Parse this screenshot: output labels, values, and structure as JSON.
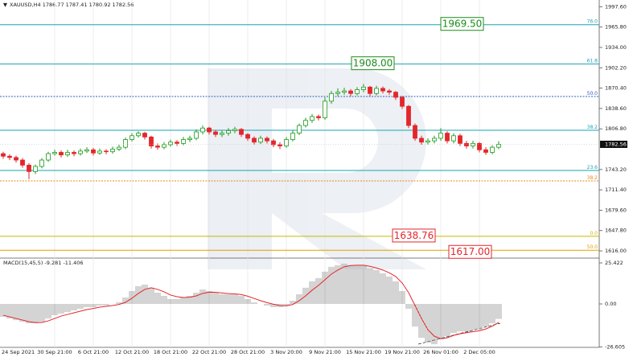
{
  "chart_data": {
    "type": "candlestick",
    "header": "XAUUSD,H4  1786.77 1787.41 1780.92 1782.56",
    "ylim": [
      1606,
      2005.6
    ],
    "yticks": [
      {
        "value": 1997.6,
        "label": "1997.60"
      },
      {
        "value": 1965.8,
        "label": "1965.80"
      },
      {
        "value": 1934,
        "label": "1934.00"
      },
      {
        "value": 1902.2,
        "label": "1902.20"
      },
      {
        "value": 1870.4,
        "label": "1870.40"
      },
      {
        "value": 1838.6,
        "label": "1838.60"
      },
      {
        "value": 1806.8,
        "label": "1806.80"
      },
      {
        "value": 1743.2,
        "label": "1743.20"
      },
      {
        "value": 1711.4,
        "label": "1711.40"
      },
      {
        "value": 1679.6,
        "label": "1679.60"
      },
      {
        "value": 1647.8,
        "label": "1647.80"
      },
      {
        "value": 1616,
        "label": "1616.00"
      }
    ],
    "x_labels": [
      "24 Sep 2021",
      "30 Sep 21:00",
      "6 Oct 21:00",
      "12 Oct 21:00",
      "18 Oct 21:00",
      "22 Oct 21:00",
      "28 Oct 21:00",
      "3 Nov 20:00",
      "9 Nov 21:00",
      "15 Nov 21:00",
      "19 Nov 21:00",
      "26 Nov 01:00",
      "2 Dec 05:00"
    ],
    "up_color": "#1c9c1c",
    "down_color": "#e3262b",
    "open": [
      1768,
      1764,
      1762,
      1758,
      1750,
      1740,
      1748,
      1758,
      1768,
      1770,
      1766,
      1770,
      1768,
      1772,
      1774,
      1769,
      1772,
      1771,
      1775,
      1778,
      1790,
      1796,
      1800,
      1794,
      1780,
      1778,
      1782,
      1786,
      1784,
      1790,
      1792,
      1802,
      1808,
      1802,
      1798,
      1800,
      1804,
      1806,
      1798,
      1792,
      1786,
      1792,
      1788,
      1782,
      1780,
      1790,
      1800,
      1812,
      1820,
      1826,
      1824,
      1850,
      1862,
      1864,
      1866,
      1862,
      1868,
      1872,
      1862,
      1870,
      1866,
      1864,
      1856,
      1842,
      1812,
      1792,
      1786,
      1788,
      1792,
      1800,
      1788,
      1796,
      1784,
      1780,
      1784,
      1774,
      1770,
      1778
    ],
    "high": [
      1771,
      1767,
      1765,
      1761,
      1753,
      1751,
      1761,
      1771,
      1774,
      1773,
      1774,
      1773,
      1776,
      1778,
      1777,
      1776,
      1775,
      1779,
      1782,
      1793,
      1800,
      1803,
      1802,
      1796,
      1784,
      1786,
      1790,
      1789,
      1794,
      1796,
      1806,
      1812,
      1810,
      1805,
      1804,
      1808,
      1810,
      1808,
      1800,
      1795,
      1796,
      1795,
      1791,
      1786,
      1794,
      1804,
      1815,
      1824,
      1830,
      1829,
      1856,
      1866,
      1870,
      1871,
      1869,
      1872,
      1877,
      1874,
      1874,
      1873,
      1869,
      1866,
      1858,
      1844,
      1815,
      1796,
      1792,
      1796,
      1808,
      1803,
      1800,
      1799,
      1788,
      1788,
      1786,
      1778,
      1781,
      1787.41
    ],
    "low": [
      1760,
      1758,
      1754,
      1746,
      1728,
      1736,
      1745,
      1755,
      1765,
      1762,
      1763,
      1764,
      1765,
      1769,
      1765,
      1766,
      1767,
      1768,
      1772,
      1775,
      1787,
      1793,
      1790,
      1776,
      1774,
      1775,
      1779,
      1780,
      1781,
      1786,
      1789,
      1798,
      1798,
      1794,
      1794,
      1796,
      1800,
      1794,
      1788,
      1782,
      1783,
      1784,
      1778,
      1775,
      1777,
      1787,
      1797,
      1809,
      1816,
      1820,
      1821,
      1846,
      1858,
      1860,
      1858,
      1859,
      1864,
      1858,
      1859,
      1862,
      1860,
      1852,
      1838,
      1808,
      1788,
      1782,
      1782,
      1784,
      1788,
      1784,
      1784,
      1780,
      1776,
      1776,
      1770,
      1766,
      1767,
      1775
    ],
    "close": [
      1764,
      1762,
      1758,
      1750,
      1740,
      1748,
      1758,
      1768,
      1770,
      1766,
      1770,
      1768,
      1772,
      1774,
      1769,
      1772,
      1771,
      1775,
      1778,
      1790,
      1796,
      1800,
      1794,
      1780,
      1778,
      1782,
      1786,
      1784,
      1790,
      1792,
      1802,
      1808,
      1802,
      1798,
      1800,
      1804,
      1806,
      1798,
      1792,
      1786,
      1792,
      1788,
      1782,
      1780,
      1790,
      1800,
      1812,
      1820,
      1826,
      1824,
      1850,
      1862,
      1864,
      1866,
      1862,
      1868,
      1872,
      1862,
      1870,
      1866,
      1864,
      1856,
      1842,
      1812,
      1792,
      1786,
      1788,
      1792,
      1800,
      1788,
      1796,
      1784,
      1780,
      1784,
      1774,
      1770,
      1778,
      1782.56
    ],
    "levels": [
      {
        "value": 1969.5,
        "label": "76.0",
        "color": "#1aa3b3",
        "dashed": false
      },
      {
        "value": 1908,
        "label": "61.8",
        "color": "#1aa3b3",
        "dashed": false
      },
      {
        "value": 1857.3,
        "label": "50.0",
        "color": "#2f5fc4",
        "dashed": true
      },
      {
        "value": 1804.5,
        "label": "38.2",
        "color": "#1aa3b3",
        "dashed": false
      },
      {
        "value": 1741.7,
        "label": "23.6",
        "color": "#1aa3b3",
        "dashed": false
      },
      {
        "value": 1725.4,
        "label": "38.2",
        "color": "#e58a1f",
        "dashed": true
      },
      {
        "value": 1638.76,
        "label": "0.0",
        "color": "#c9b800",
        "dashed": false
      },
      {
        "value": 1617,
        "label": "50.0",
        "color": "#e0a000",
        "dashed": false
      }
    ],
    "annotations": [
      {
        "value": 1969.5,
        "label": "1969.50",
        "color": "#1c8c1c"
      },
      {
        "value": 1908,
        "label": "1908.00",
        "color": "#1c8c1c"
      },
      {
        "value": 1638.76,
        "label": "1638.76",
        "color": "#e3262b"
      },
      {
        "value": 1617,
        "label": "1617.00",
        "color": "#e3262b"
      }
    ],
    "macd": {
      "title": "MACD(15,45,5) -9.281 -11.406",
      "ylim": [
        -26.9,
        27.9
      ],
      "yticks": [
        25.422,
        {
          "value": 0,
          "label": "0.00"
        },
        -26.605
      ],
      "histogram_color": "#a0a0a0",
      "signal_color": "#e3262b",
      "histogram": [
        -8,
        -9,
        -10,
        -11,
        -12,
        -12,
        -11,
        -9,
        -7,
        -6,
        -5,
        -4,
        -3,
        -2,
        -2,
        -1,
        -1,
        0,
        1,
        4,
        8,
        11,
        12,
        10,
        7,
        5,
        3,
        3,
        4,
        5,
        7,
        9,
        8,
        7,
        6,
        6,
        6,
        5,
        3,
        1,
        0,
        -1,
        -2,
        -2,
        -1,
        2,
        6,
        10,
        14,
        16,
        20,
        23,
        24,
        25,
        24,
        24,
        24,
        22,
        21,
        19,
        17,
        14,
        8,
        -3,
        -14,
        -21,
        -24,
        -25,
        -22,
        -20,
        -18,
        -17,
        -17,
        -16,
        -16,
        -14,
        -12,
        -9.281
      ],
      "signal": [
        -7,
        -8,
        -9,
        -10,
        -11,
        -11.5,
        -11.5,
        -10.5,
        -9,
        -7.5,
        -6.5,
        -5.5,
        -4.5,
        -3.5,
        -2.8,
        -2,
        -1.5,
        -1,
        -0.3,
        1,
        3.5,
        6.5,
        9,
        10,
        9,
        7.5,
        5.5,
        4.5,
        4,
        4.2,
        5,
        6.5,
        7.3,
        7.2,
        6.8,
        6.4,
        6.2,
        5.8,
        4.8,
        3.4,
        2,
        0.8,
        -0.2,
        -1,
        -1.2,
        -0.3,
        2,
        5,
        8.5,
        11.5,
        15,
        18.5,
        21,
        23,
        23.8,
        24,
        24,
        23.3,
        22.3,
        21,
        19.3,
        17,
        13,
        7,
        -1,
        -9,
        -16,
        -20,
        -21.5,
        -21,
        -19.5,
        -18.5,
        -17.8,
        -17.2,
        -16.6,
        -15.5,
        -13.8,
        -11.406
      ]
    }
  }
}
